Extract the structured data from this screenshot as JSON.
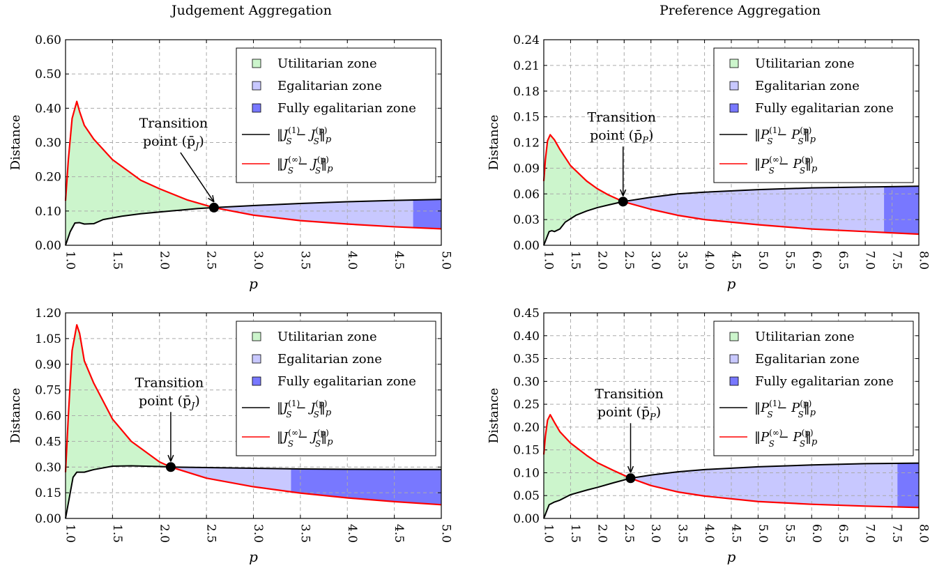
{
  "columns": {
    "left_title": "Judgement Aggregation",
    "right_title": "Preference Aggregation"
  },
  "chart_data": [
    {
      "type": "line",
      "panel": "top-left",
      "xlabel": "p",
      "ylabel": "Distance",
      "xlim": [
        1.0,
        5.0
      ],
      "ylim": [
        0.0,
        0.6
      ],
      "xticks": [
        "1.0",
        "1.5",
        "2.0",
        "2.5",
        "3.0",
        "3.5",
        "4.0",
        "4.5",
        "5.0"
      ],
      "yticks": [
        "0.00",
        "0.10",
        "0.20",
        "0.30",
        "0.40",
        "0.50",
        "0.60"
      ],
      "grid": true,
      "legend_position": "top-right",
      "series": [
        {
          "name": "‖J_S^(1) − J_S^(p)‖_p",
          "color": "#000000",
          "points": [
            [
              1.0,
              0.0
            ],
            [
              1.05,
              0.04
            ],
            [
              1.1,
              0.065
            ],
            [
              1.15,
              0.066
            ],
            [
              1.2,
              0.062
            ],
            [
              1.3,
              0.063
            ],
            [
              1.4,
              0.075
            ],
            [
              1.6,
              0.085
            ],
            [
              1.8,
              0.092
            ],
            [
              2.0,
              0.097
            ],
            [
              2.2,
              0.102
            ],
            [
              2.4,
              0.107
            ],
            [
              2.58,
              0.11
            ],
            [
              3.0,
              0.116
            ],
            [
              3.5,
              0.122
            ],
            [
              4.0,
              0.127
            ],
            [
              4.5,
              0.131
            ],
            [
              5.0,
              0.134
            ]
          ]
        },
        {
          "name": "‖J_S^(∞) − J_S^(p)‖_p",
          "color": "#ff0000",
          "points": [
            [
              1.0,
              0.13
            ],
            [
              1.03,
              0.25
            ],
            [
              1.07,
              0.37
            ],
            [
              1.12,
              0.42
            ],
            [
              1.15,
              0.39
            ],
            [
              1.2,
              0.35
            ],
            [
              1.3,
              0.31
            ],
            [
              1.5,
              0.25
            ],
            [
              1.8,
              0.19
            ],
            [
              2.0,
              0.165
            ],
            [
              2.3,
              0.132
            ],
            [
              2.58,
              0.11
            ],
            [
              3.0,
              0.088
            ],
            [
              3.5,
              0.072
            ],
            [
              4.0,
              0.062
            ],
            [
              4.5,
              0.054
            ],
            [
              5.0,
              0.048
            ]
          ]
        }
      ],
      "zones": {
        "fully_egalitarian_start": 4.7
      },
      "transition_point": {
        "x": 2.58,
        "y": 0.11
      },
      "annotation": {
        "line1": "Transition",
        "line2": "point (p̄",
        "sub": "J",
        "close": ")"
      }
    },
    {
      "type": "line",
      "panel": "top-right",
      "xlabel": "p",
      "ylabel": "Distance",
      "xlim": [
        1.0,
        8.0
      ],
      "ylim": [
        0.0,
        0.24
      ],
      "xticks": [
        "1.0",
        "1.5",
        "2.0",
        "2.5",
        "3.0",
        "3.5",
        "4.0",
        "4.5",
        "5.0",
        "5.5",
        "6.0",
        "6.5",
        "7.0",
        "7.5",
        "8.0"
      ],
      "yticks": [
        "0.00",
        "0.03",
        "0.06",
        "0.09",
        "0.12",
        "0.15",
        "0.18",
        "0.21",
        "0.24"
      ],
      "grid": true,
      "legend_position": "top-right",
      "series": [
        {
          "name": "‖P_S^(1) − P_S^(p)‖_p",
          "color": "#000000",
          "points": [
            [
              1.0,
              0.0
            ],
            [
              1.05,
              0.008
            ],
            [
              1.1,
              0.016
            ],
            [
              1.15,
              0.017
            ],
            [
              1.2,
              0.016
            ],
            [
              1.3,
              0.019
            ],
            [
              1.4,
              0.027
            ],
            [
              1.6,
              0.035
            ],
            [
              1.8,
              0.04
            ],
            [
              2.0,
              0.044
            ],
            [
              2.2,
              0.047
            ],
            [
              2.48,
              0.051
            ],
            [
              3.0,
              0.056
            ],
            [
              3.5,
              0.06
            ],
            [
              4.0,
              0.062
            ],
            [
              5.0,
              0.065
            ],
            [
              6.0,
              0.067
            ],
            [
              7.0,
              0.068
            ],
            [
              8.0,
              0.069
            ]
          ]
        },
        {
          "name": "‖P_S^(∞) − P_S^(p)‖_p",
          "color": "#ff0000",
          "points": [
            [
              1.0,
              0.075
            ],
            [
              1.03,
              0.1
            ],
            [
              1.07,
              0.122
            ],
            [
              1.12,
              0.129
            ],
            [
              1.2,
              0.123
            ],
            [
              1.3,
              0.112
            ],
            [
              1.5,
              0.093
            ],
            [
              1.8,
              0.075
            ],
            [
              2.0,
              0.066
            ],
            [
              2.2,
              0.059
            ],
            [
              2.48,
              0.051
            ],
            [
              3.0,
              0.042
            ],
            [
              3.5,
              0.035
            ],
            [
              4.0,
              0.03
            ],
            [
              5.0,
              0.024
            ],
            [
              6.0,
              0.019
            ],
            [
              7.0,
              0.016
            ],
            [
              8.0,
              0.013
            ]
          ]
        }
      ],
      "zones": {
        "fully_egalitarian_start": 7.35
      },
      "transition_point": {
        "x": 2.48,
        "y": 0.051
      },
      "annotation": {
        "line1": "Transition",
        "line2": "point (p̄",
        "sub": "P",
        "close": ")"
      }
    },
    {
      "type": "line",
      "panel": "bottom-left",
      "xlabel": "p",
      "ylabel": "Distance",
      "xlim": [
        1.0,
        5.0
      ],
      "ylim": [
        0.0,
        1.2
      ],
      "xticks": [
        "1.0",
        "1.5",
        "2.0",
        "2.5",
        "3.0",
        "3.5",
        "4.0",
        "4.5",
        "5.0"
      ],
      "yticks": [
        "0.00",
        "0.15",
        "0.30",
        "0.45",
        "0.60",
        "0.75",
        "0.90",
        "1.05",
        "1.20"
      ],
      "grid": true,
      "legend_position": "top-right",
      "series": [
        {
          "name": "‖J_S^(1) − J_S^(p)‖_p",
          "color": "#000000",
          "points": [
            [
              1.0,
              0.0
            ],
            [
              1.04,
              0.12
            ],
            [
              1.08,
              0.24
            ],
            [
              1.12,
              0.27
            ],
            [
              1.2,
              0.27
            ],
            [
              1.3,
              0.285
            ],
            [
              1.5,
              0.305
            ],
            [
              1.7,
              0.307
            ],
            [
              2.0,
              0.303
            ],
            [
              2.12,
              0.3
            ],
            [
              2.5,
              0.297
            ],
            [
              3.0,
              0.293
            ],
            [
              3.5,
              0.289
            ],
            [
              4.0,
              0.287
            ],
            [
              4.5,
              0.286
            ],
            [
              5.0,
              0.286
            ]
          ]
        },
        {
          "name": "‖J_S^(∞) − J_S^(p)‖_p",
          "color": "#ff0000",
          "points": [
            [
              1.0,
              0.27
            ],
            [
              1.03,
              0.6
            ],
            [
              1.07,
              0.98
            ],
            [
              1.12,
              1.13
            ],
            [
              1.15,
              1.08
            ],
            [
              1.2,
              0.92
            ],
            [
              1.3,
              0.79
            ],
            [
              1.5,
              0.58
            ],
            [
              1.7,
              0.45
            ],
            [
              2.0,
              0.33
            ],
            [
              2.12,
              0.3
            ],
            [
              2.5,
              0.235
            ],
            [
              3.0,
              0.185
            ],
            [
              3.5,
              0.148
            ],
            [
              4.0,
              0.12
            ],
            [
              4.5,
              0.098
            ],
            [
              5.0,
              0.08
            ]
          ]
        }
      ],
      "zones": {
        "fully_egalitarian_start": 3.4
      },
      "transition_point": {
        "x": 2.12,
        "y": 0.3
      },
      "annotation": {
        "line1": "Transition",
        "line2": "point (p̄",
        "sub": "J",
        "close": ")"
      }
    },
    {
      "type": "line",
      "panel": "bottom-right",
      "xlabel": "p",
      "ylabel": "Distance",
      "xlim": [
        1.0,
        8.0
      ],
      "ylim": [
        0.0,
        0.45
      ],
      "xticks": [
        "1.0",
        "1.5",
        "2.0",
        "2.5",
        "3.0",
        "3.5",
        "4.0",
        "4.5",
        "5.0",
        "5.5",
        "6.0",
        "6.5",
        "7.0",
        "7.5",
        "8.0"
      ],
      "yticks": [
        "0.00",
        "0.05",
        "0.10",
        "0.15",
        "0.20",
        "0.25",
        "0.30",
        "0.35",
        "0.40",
        "0.45"
      ],
      "grid": true,
      "legend_position": "top-right",
      "series": [
        {
          "name": "‖P_S^(1) − P_S^(p)‖_p",
          "color": "#000000",
          "points": [
            [
              1.0,
              0.0
            ],
            [
              1.05,
              0.015
            ],
            [
              1.1,
              0.03
            ],
            [
              1.2,
              0.036
            ],
            [
              1.3,
              0.04
            ],
            [
              1.5,
              0.052
            ],
            [
              1.8,
              0.062
            ],
            [
              2.0,
              0.068
            ],
            [
              2.3,
              0.078
            ],
            [
              2.62,
              0.088
            ],
            [
              3.0,
              0.095
            ],
            [
              3.5,
              0.102
            ],
            [
              4.0,
              0.107
            ],
            [
              5.0,
              0.113
            ],
            [
              6.0,
              0.117
            ],
            [
              7.0,
              0.12
            ],
            [
              8.0,
              0.121
            ]
          ]
        },
        {
          "name": "‖P_S^(∞) − P_S^(p)‖_p",
          "color": "#ff0000",
          "points": [
            [
              1.0,
              0.14
            ],
            [
              1.03,
              0.18
            ],
            [
              1.07,
              0.215
            ],
            [
              1.12,
              0.227
            ],
            [
              1.2,
              0.21
            ],
            [
              1.3,
              0.19
            ],
            [
              1.5,
              0.165
            ],
            [
              1.8,
              0.138
            ],
            [
              2.0,
              0.122
            ],
            [
              2.3,
              0.105
            ],
            [
              2.62,
              0.088
            ],
            [
              3.0,
              0.072
            ],
            [
              3.5,
              0.058
            ],
            [
              4.0,
              0.049
            ],
            [
              5.0,
              0.037
            ],
            [
              6.0,
              0.031
            ],
            [
              7.0,
              0.027
            ],
            [
              8.0,
              0.024
            ]
          ]
        }
      ],
      "zones": {
        "fully_egalitarian_start": 7.6
      },
      "transition_point": {
        "x": 2.62,
        "y": 0.088
      },
      "annotation": {
        "line1": "Transition",
        "line2": "point (p̄",
        "sub": "P",
        "close": ")"
      }
    }
  ],
  "legend": {
    "utilitarian": "Utilitarian zone",
    "egalitarian": "Egalitarian zone",
    "fully": "Fully egalitarian zone"
  },
  "colors": {
    "utilitarian_fill": "#ccf5cc",
    "egalitarian_fill": "#c8c8ff",
    "fully_fill": "#7878ff",
    "grid": "#aaaaaa"
  }
}
